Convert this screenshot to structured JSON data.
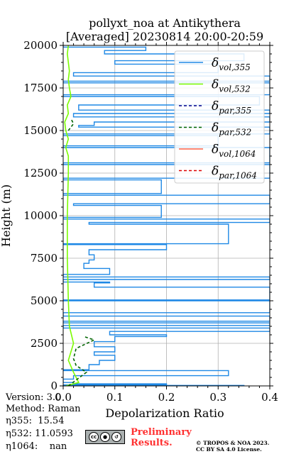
{
  "chart_data": {
    "type": "line",
    "title_line1": "pollyxt_noa at Antikythera",
    "title_line2": "[Averaged] 20230814 20:00-20:59",
    "xlabel": "Depolarization Ratio",
    "ylabel": "Height (m)",
    "xlim": [
      0,
      0.4
    ],
    "ylim": [
      0,
      20000
    ],
    "xticks": [
      "0.0",
      "0.1",
      "0.2",
      "0.3",
      "0.4"
    ],
    "yticks": [
      "0",
      "2500",
      "5000",
      "7500",
      "10000",
      "12500",
      "15000",
      "17500",
      "20000"
    ],
    "xtick_values": [
      0,
      0.1,
      0.2,
      0.3,
      0.4
    ],
    "ytick_values": [
      0,
      2500,
      5000,
      7500,
      10000,
      12500,
      15000,
      17500,
      20000
    ],
    "grid": true,
    "legend_position": "top-right",
    "legend": [
      {
        "key": "vol355",
        "base": "δ",
        "sub": "vol,355",
        "color": "#1e88e5",
        "dash": false
      },
      {
        "key": "vol532",
        "base": "δ",
        "sub": "vol,532",
        "color": "#7cfc00",
        "dash": false
      },
      {
        "key": "par355",
        "base": "δ",
        "sub": "par,355",
        "color": "#00008b",
        "dash": true
      },
      {
        "key": "par532",
        "base": "δ",
        "sub": "par,532",
        "color": "#006400",
        "dash": true
      },
      {
        "key": "vol1064",
        "base": "δ",
        "sub": "vol,1064",
        "color": "#ff6347",
        "dash": false
      },
      {
        "key": "par1064",
        "base": "δ",
        "sub": "par,1064",
        "color": "#dd0000",
        "dash": true
      }
    ],
    "series": [
      {
        "name": "δvol,355",
        "color": "#1e88e5",
        "step": true,
        "points": [
          [
            0.0,
            0
          ],
          [
            0.35,
            30
          ],
          [
            0.0,
            60
          ],
          [
            0.2,
            120
          ],
          [
            0.02,
            200
          ],
          [
            0.0,
            400
          ],
          [
            0.02,
            600
          ],
          [
            0.32,
            900
          ],
          [
            0.0,
            950
          ],
          [
            0.05,
            1250
          ],
          [
            0.07,
            1500
          ],
          [
            0.1,
            1800
          ],
          [
            0.06,
            2000
          ],
          [
            0.1,
            2300
          ],
          [
            0.06,
            2600
          ],
          [
            0.1,
            2900
          ],
          [
            0.2,
            3000
          ],
          [
            0.09,
            3200
          ],
          [
            0.4,
            3400
          ],
          [
            0.0,
            3550
          ],
          [
            0.4,
            3700
          ],
          [
            0.0,
            3800
          ],
          [
            0.4,
            4100
          ],
          [
            0.0,
            4300
          ],
          [
            0.4,
            5000
          ],
          [
            0.0,
            5050
          ],
          [
            0.4,
            5800
          ],
          [
            0.06,
            6050
          ],
          [
            0.09,
            6100
          ],
          [
            0.0,
            6250
          ],
          [
            0.4,
            6400
          ],
          [
            0.0,
            6550
          ],
          [
            0.09,
            6900
          ],
          [
            0.04,
            7200
          ],
          [
            0.05,
            7400
          ],
          [
            0.06,
            7700
          ],
          [
            0.05,
            8000
          ],
          [
            0.2,
            8300
          ],
          [
            0.0,
            8350
          ],
          [
            0.32,
            9500
          ],
          [
            0.05,
            9600
          ],
          [
            0.4,
            9800
          ],
          [
            0.0,
            9900
          ],
          [
            0.19,
            10600
          ],
          [
            0.02,
            10700
          ],
          [
            0.4,
            11200
          ],
          [
            0.0,
            11300
          ],
          [
            0.19,
            12100
          ],
          [
            0.0,
            12200
          ],
          [
            0.4,
            13000
          ],
          [
            0.0,
            13100
          ],
          [
            0.4,
            14000
          ],
          [
            0.0,
            14100
          ],
          [
            0.3,
            14700
          ],
          [
            0.0,
            14800
          ],
          [
            0.4,
            15200
          ],
          [
            0.03,
            15300
          ],
          [
            0.06,
            15500
          ],
          [
            0.4,
            15800
          ],
          [
            0.02,
            16000
          ],
          [
            0.4,
            16200
          ],
          [
            0.03,
            16500
          ],
          [
            0.38,
            17000
          ],
          [
            0.0,
            17100
          ],
          [
            0.4,
            17800
          ],
          [
            0.0,
            17900
          ],
          [
            0.4,
            18200
          ],
          [
            0.02,
            18400
          ],
          [
            0.3,
            18900
          ],
          [
            0.1,
            19100
          ],
          [
            0.35,
            19500
          ],
          [
            0.08,
            19700
          ],
          [
            0.16,
            19900
          ],
          [
            0.0,
            20000
          ]
        ]
      },
      {
        "name": "δvol,532",
        "color": "#7cfc00",
        "step": false,
        "points": [
          [
            0.005,
            0
          ],
          [
            0.03,
            200
          ],
          [
            0.02,
            800
          ],
          [
            0.01,
            1500
          ],
          [
            0.02,
            2500
          ],
          [
            0.012,
            3500
          ],
          [
            0.01,
            5000
          ],
          [
            0.008,
            7500
          ],
          [
            0.008,
            10000
          ],
          [
            0.01,
            12500
          ],
          [
            0.01,
            13500
          ],
          [
            0.005,
            14000
          ],
          [
            0.01,
            14500
          ],
          [
            0.005,
            15000
          ],
          [
            0.003,
            15500
          ],
          [
            0.01,
            16000
          ],
          [
            0.008,
            16500
          ],
          [
            0.015,
            17000
          ],
          [
            0.012,
            17500
          ],
          [
            0.01,
            18000
          ],
          [
            0.012,
            18500
          ],
          [
            0.008,
            19500
          ],
          [
            0.01,
            20000
          ]
        ]
      },
      {
        "name": "δpar,532",
        "color": "#006400",
        "step": false,
        "dash": true,
        "points": [
          [
            0.01,
            0
          ],
          [
            0.045,
            800
          ],
          [
            0.025,
            1200
          ],
          [
            0.02,
            1600
          ],
          [
            0.025,
            2200
          ],
          [
            0.06,
            2700
          ],
          [
            0.04,
            2900
          ]
        ]
      },
      {
        "name": "δpar,532 upper",
        "color": "#006400",
        "step": false,
        "dash": true,
        "points": [
          [
            0.01,
            15000
          ],
          [
            0.02,
            15400
          ],
          [
            0.015,
            15700
          ]
        ]
      }
    ]
  },
  "info": {
    "version": "Version: 3.0",
    "method": "Method: Raman",
    "eta355": "η355:  15.54",
    "eta532": "η532: 11.0593",
    "eta1064": "η1064:    nan"
  },
  "badge": {
    "cc_text": "cc",
    "by_text": "BY SA",
    "preliminary_line1": "Preliminary",
    "preliminary_line2": "Results.",
    "license_line1": "© TROPOS & NOA 2023.",
    "license_line2": "CC BY SA 4.0 License."
  }
}
